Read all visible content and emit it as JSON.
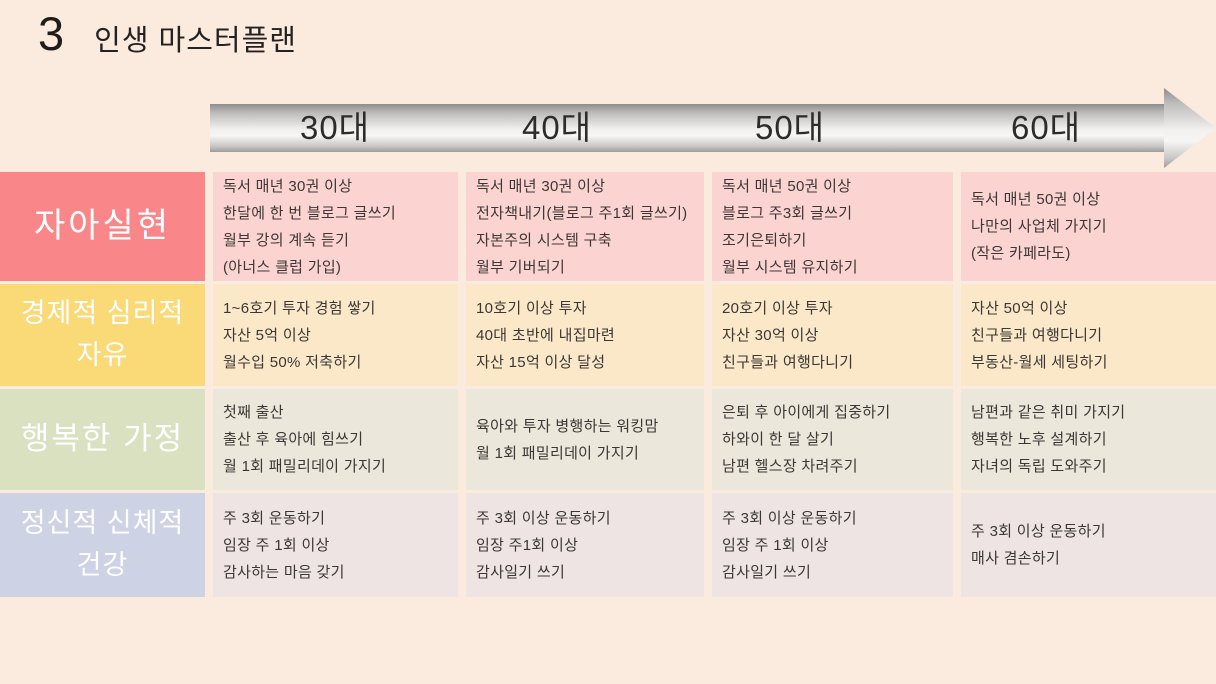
{
  "title": {
    "number": "3",
    "text": "인생 마스터플랜"
  },
  "timeline": {
    "decades": [
      {
        "label": "30대"
      },
      {
        "label": "40대"
      },
      {
        "label": "50대"
      },
      {
        "label": "60대"
      }
    ]
  },
  "colors": {
    "background": "#fbeade",
    "arrow_top": "#8f8d8b",
    "arrow_mid": "#f6f4f2",
    "label_text": "#ffffff",
    "cell_text": "#3b3735"
  },
  "rows": [
    {
      "label": "자아실현",
      "label_bg": "#f9878a",
      "cell_bg": "#fbd4d2",
      "cells": [
        [
          "독서 매년 30권 이상",
          "한달에 한 번 블로그 글쓰기",
          "월부 강의 계속 듣기",
          "(아너스 클럽 가입)"
        ],
        [
          "독서 매년 30권 이상",
          "전자책내기(블로그 주1회 글쓰기)",
          "자본주의 시스템 구축",
          "월부 기버되기"
        ],
        [
          "독서 매년 50권 이상",
          "블로그 주3회 글쓰기",
          "조기은퇴하기",
          "월부 시스템 유지하기"
        ],
        [
          "독서 매년 50권 이상",
          "나만의 사업체 가지기",
          "(작은 카페라도)"
        ]
      ]
    },
    {
      "label": "경제적 심리적 자유",
      "label_bg": "#fad977",
      "cell_bg": "#fae8c9",
      "cells": [
        [
          "1~6호기 투자 경험 쌓기",
          "자산 5억 이상",
          "월수입 50% 저축하기"
        ],
        [
          "10호기 이상 투자",
          "40대 초반에 내집마련",
          "자산 15억 이상 달성"
        ],
        [
          "20호기 이상 투자",
          "자산 30억 이상",
          "친구들과 여행다니기"
        ],
        [
          "자산 50억 이상",
          "친구들과 여행다니기",
          "부동산-월세 세팅하기"
        ]
      ]
    },
    {
      "label": "행복한 가정",
      "label_bg": "#d9e1c1",
      "cell_bg": "#ebe7da",
      "cells": [
        [
          "첫째 출산",
          "출산 후 육아에 힘쓰기",
          "월 1회 패밀리데이 가지기"
        ],
        [
          "육아와 투자 병행하는 워킹맘",
          "월 1회 패밀리데이 가지기"
        ],
        [
          "은퇴 후 아이에게 집중하기",
          "하와이 한 달 살기",
          "남편 헬스장 차려주기"
        ],
        [
          "남편과 같은 취미 가지기",
          "행복한 노후 설계하기",
          "자녀의 독립 도와주기"
        ]
      ]
    },
    {
      "label": "정신적 신체적 건강",
      "label_bg": "#cdd3e5",
      "cell_bg": "#eee4e4",
      "cells": [
        [
          "주 3회 운동하기",
          "임장 주 1회 이상",
          "감사하는 마음 갖기"
        ],
        [
          "주 3회 이상 운동하기",
          "임장 주1회 이상",
          "감사일기 쓰기"
        ],
        [
          "주 3회 이상 운동하기",
          "임장 주 1회 이상",
          "감사일기 쓰기"
        ],
        [
          "주 3회 이상 운동하기",
          "매사 겸손하기"
        ]
      ]
    }
  ]
}
